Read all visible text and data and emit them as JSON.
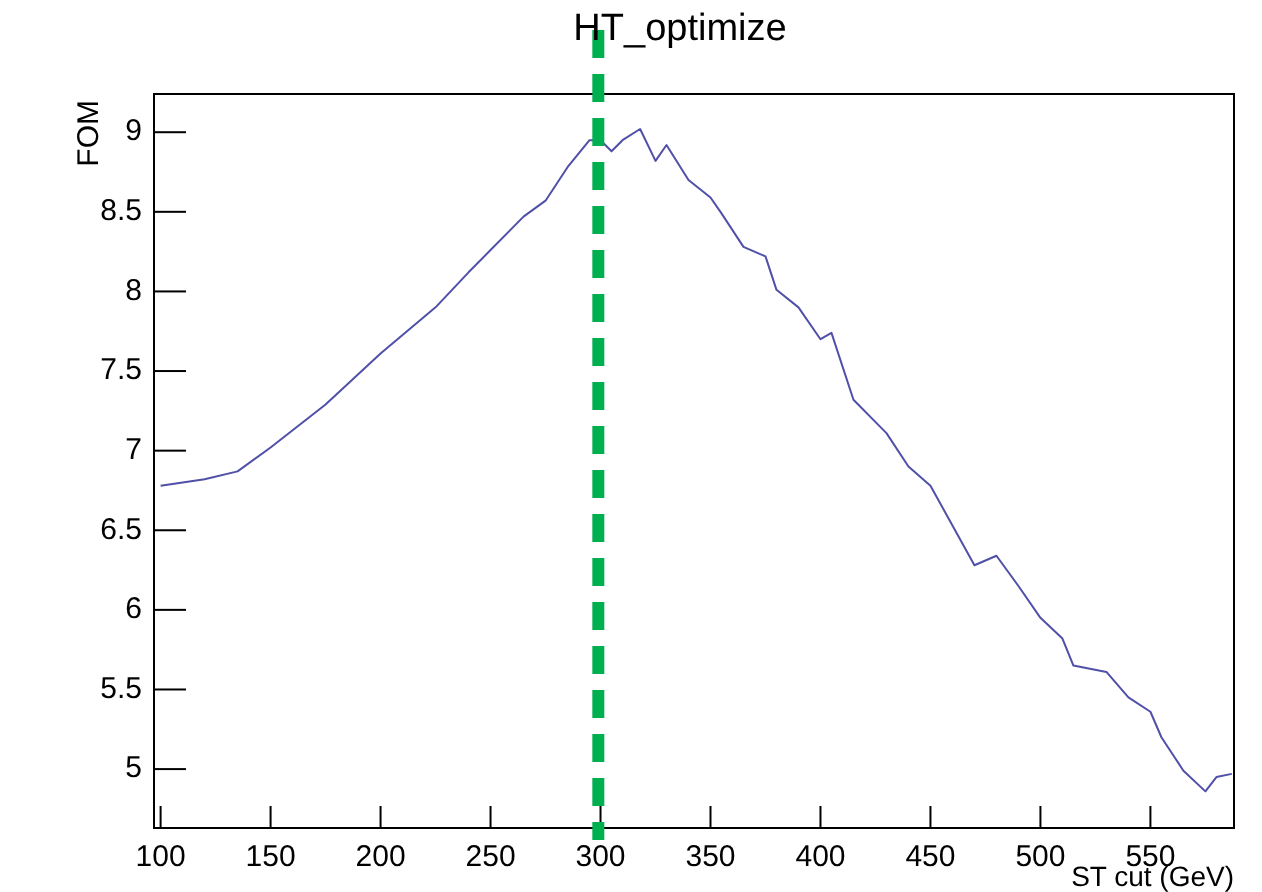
{
  "chart_data": {
    "type": "line",
    "title": "HT_optimize",
    "xlabel": "ST cut (GeV)",
    "ylabel": "FOM",
    "x": [
      100,
      120,
      135,
      150,
      175,
      200,
      225,
      240,
      250,
      265,
      275,
      285,
      295,
      300,
      305,
      310,
      318,
      325,
      330,
      340,
      350,
      355,
      365,
      375,
      380,
      390,
      400,
      405,
      415,
      430,
      440,
      450,
      460,
      470,
      480,
      490,
      500,
      510,
      515,
      530,
      540,
      550,
      555,
      565,
      575,
      580,
      587
    ],
    "series": [
      {
        "color": "#5050a8",
        "values": [
          6.78,
          6.82,
          6.87,
          7.02,
          7.29,
          7.61,
          7.9,
          8.12,
          8.26,
          8.47,
          8.57,
          8.78,
          8.95,
          8.95,
          8.88,
          8.95,
          9.02,
          8.82,
          8.92,
          8.7,
          8.59,
          8.49,
          8.28,
          8.22,
          8.01,
          7.9,
          7.7,
          7.74,
          7.32,
          7.11,
          6.9,
          6.78,
          6.53,
          6.28,
          6.34,
          6.15,
          5.95,
          5.82,
          5.65,
          5.61,
          5.45,
          5.36,
          5.2,
          4.99,
          4.86,
          4.95,
          4.97
        ]
      }
    ],
    "xlim": [
      97,
      588
    ],
    "ylim": [
      4.63,
      9.24
    ],
    "xticks": [
      100,
      150,
      200,
      250,
      300,
      350,
      400,
      450,
      500,
      550
    ],
    "yticks": [
      5,
      5.5,
      6,
      6.5,
      7,
      7.5,
      8,
      8.5,
      9
    ],
    "grid": false,
    "ref_lines": [
      {
        "axis": "x",
        "value": 299,
        "color": "#00b050",
        "line_style": "dashed"
      }
    ]
  }
}
